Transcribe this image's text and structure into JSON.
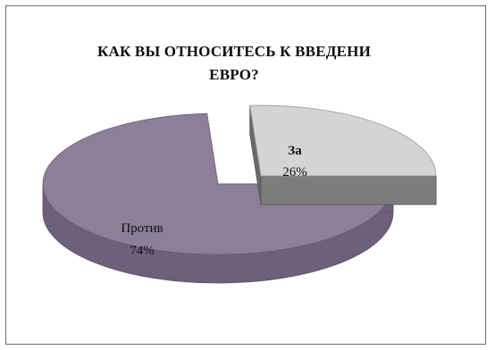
{
  "chart_data": {
    "type": "pie",
    "title_lines": [
      "КАК ВЫ ОТНОСИТЕСЬ К ВВЕДЕНИ",
      "ЕВРО?"
    ],
    "slices": [
      {
        "label": "За",
        "value": 26,
        "value_label": "26%",
        "color_top": "#d4d4d4",
        "color_side": "#7c7c7c"
      },
      {
        "label": "Против",
        "value": 74,
        "value_label": "74%",
        "color_top": "#8e7f99",
        "color_side": "#6e5f7a"
      }
    ],
    "legend": "none",
    "style": "3d-exploded"
  }
}
